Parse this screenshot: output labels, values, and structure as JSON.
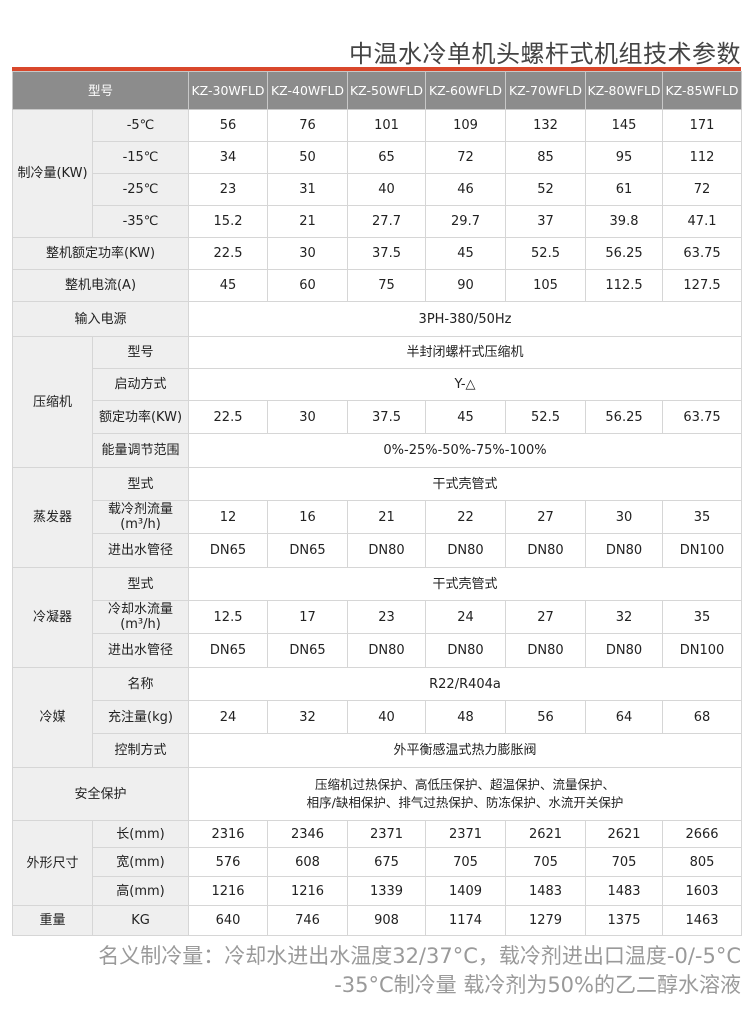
{
  "title": "中温水冷单机头螺杆式机组技术参数",
  "accent_color": "#d9472b",
  "header": {
    "label": "型号",
    "models": [
      "KZ-30WFLD",
      "KZ-40WFLD",
      "KZ-50WFLD",
      "KZ-60WFLD",
      "KZ-70WFLD",
      "KZ-80WFLD",
      "KZ-85WFLD"
    ]
  },
  "groups": [
    {
      "group": "制冷量(KW)",
      "rows": [
        {
          "label": "-5℃",
          "values": [
            "56",
            "76",
            "101",
            "109",
            "132",
            "145",
            "171"
          ]
        },
        {
          "label": "-15℃",
          "values": [
            "34",
            "50",
            "65",
            "72",
            "85",
            "95",
            "112"
          ]
        },
        {
          "label": "-25℃",
          "values": [
            "23",
            "31",
            "40",
            "46",
            "52",
            "61",
            "72"
          ]
        },
        {
          "label": "-35℃",
          "values": [
            "15.2",
            "21",
            "27.7",
            "29.7",
            "37",
            "39.8",
            "47.1"
          ]
        }
      ]
    },
    {
      "group": "整机额定功率(KW)",
      "values": [
        "22.5",
        "30",
        "37.5",
        "45",
        "52.5",
        "56.25",
        "63.75"
      ]
    },
    {
      "group": "整机电流(A)",
      "values": [
        "45",
        "60",
        "75",
        "90",
        "105",
        "112.5",
        "127.5"
      ]
    },
    {
      "group": "输入电源",
      "span": "3PH-380/50Hz"
    },
    {
      "group": "压缩机",
      "rows": [
        {
          "label": "型号",
          "span": "半封闭螺杆式压缩机"
        },
        {
          "label": "启动方式",
          "span": "Y-△"
        },
        {
          "label": "额定功率(KW)",
          "values": [
            "22.5",
            "30",
            "37.5",
            "45",
            "52.5",
            "56.25",
            "63.75"
          ]
        },
        {
          "label": "能量调节范围",
          "span": "0%-25%-50%-75%-100%"
        }
      ]
    },
    {
      "group": "蒸发器",
      "rows": [
        {
          "label": "型式",
          "span": "干式壳管式"
        },
        {
          "label": "载冷剂流量(m³/h)",
          "values": [
            "12",
            "16",
            "21",
            "22",
            "27",
            "30",
            "35"
          ]
        },
        {
          "label": "进出水管径",
          "values": [
            "DN65",
            "DN65",
            "DN80",
            "DN80",
            "DN80",
            "DN80",
            "DN100"
          ]
        }
      ]
    },
    {
      "group": "冷凝器",
      "rows": [
        {
          "label": "型式",
          "span": "干式壳管式"
        },
        {
          "label": "冷却水流量(m³/h)",
          "values": [
            "12.5",
            "17",
            "23",
            "24",
            "27",
            "32",
            "35"
          ]
        },
        {
          "label": "进出水管径",
          "values": [
            "DN65",
            "DN65",
            "DN80",
            "DN80",
            "DN80",
            "DN80",
            "DN100"
          ]
        }
      ]
    },
    {
      "group": "冷媒",
      "rows": [
        {
          "label": "名称",
          "span": "R22/R404a"
        },
        {
          "label": "充注量(kg)",
          "values": [
            "24",
            "32",
            "40",
            "48",
            "56",
            "64",
            "68"
          ]
        },
        {
          "label": "控制方式",
          "span": "外平衡感温式热力膨胀阀"
        }
      ]
    },
    {
      "group": "安全保护",
      "span_lines": [
        "压缩机过热保护、高低压保护、超温保护、流量保护、",
        "相序/缺相保护、排气过热保护、防冻保护、水流开关保护"
      ]
    },
    {
      "group": "外形尺寸",
      "rows": [
        {
          "label": "长(mm)",
          "values": [
            "2316",
            "2346",
            "2371",
            "2371",
            "2621",
            "2621",
            "2666"
          ]
        },
        {
          "label": "宽(mm)",
          "values": [
            "576",
            "608",
            "675",
            "705",
            "705",
            "705",
            "805"
          ]
        },
        {
          "label": "高(mm)",
          "values": [
            "1216",
            "1216",
            "1339",
            "1409",
            "1483",
            "1483",
            "1603"
          ]
        }
      ]
    },
    {
      "group": "重量",
      "rows": [
        {
          "label": "KG",
          "values": [
            "640",
            "746",
            "908",
            "1174",
            "1279",
            "1375",
            "1463"
          ]
        }
      ]
    }
  ],
  "note": {
    "line1": "名义制冷量：冷却水进出水温度32/37°C，载冷剂进出口温度-0/-5°C",
    "line2": "-35°C制冷量   载冷剂为50%的乙二醇水溶液"
  }
}
